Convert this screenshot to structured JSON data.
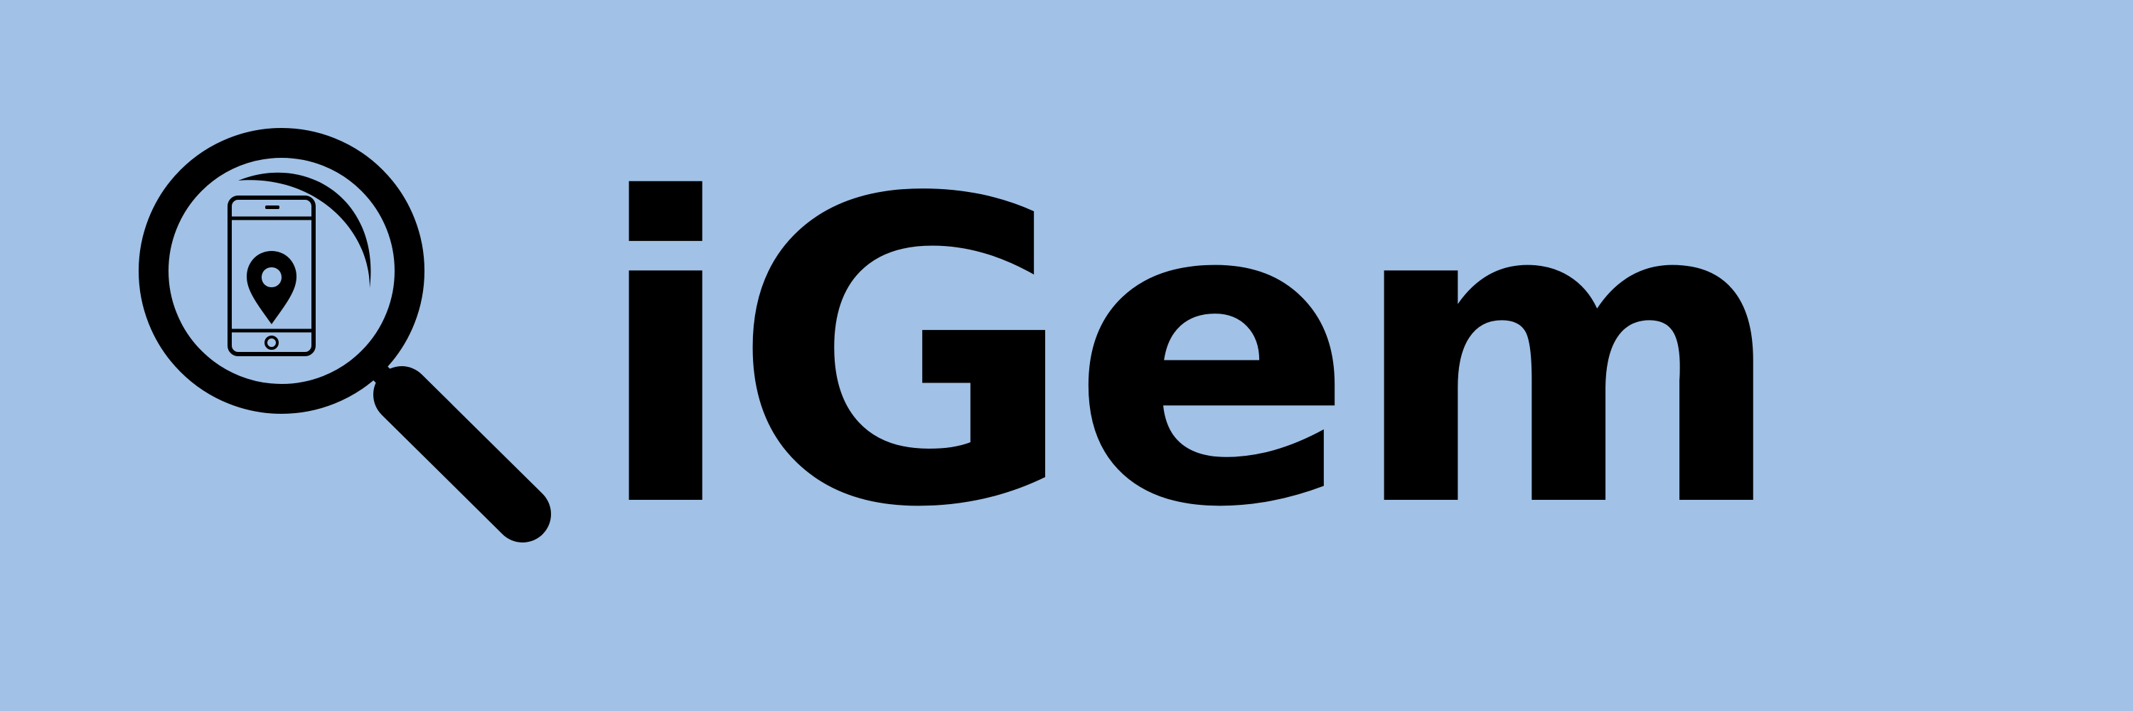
{
  "brand": {
    "name": "iGem",
    "icon": "magnifier-phone-location-icon",
    "colors": {
      "background": "#a1c1e6",
      "foreground": "#000000"
    }
  }
}
